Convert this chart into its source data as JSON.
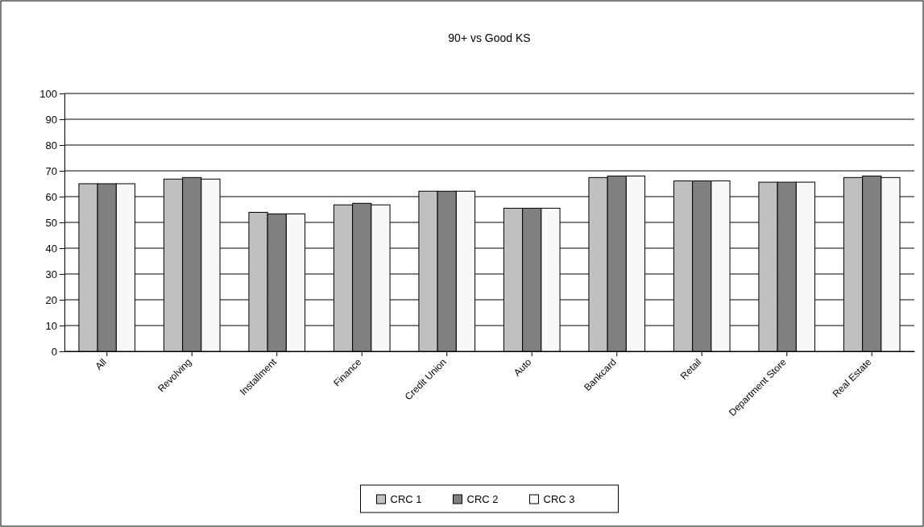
{
  "chart_data": {
    "type": "bar",
    "title": "90+ vs Good KS",
    "categories": [
      "All",
      "Revolving",
      "Installment",
      "Finance",
      "Credit Union",
      "Auto",
      "Bankcard",
      "Retail",
      "Department Store",
      "Real Estate"
    ],
    "series": [
      {
        "name": "CRC 1",
        "color": "#c0c0c0",
        "values": [
          65,
          66.8,
          53.9,
          56.8,
          62.1,
          55.5,
          67.4,
          66.1,
          65.6,
          67.4
        ]
      },
      {
        "name": "CRC 2",
        "color": "#808080",
        "values": [
          65,
          67.4,
          53.3,
          57.4,
          62.1,
          55.5,
          68.0,
          66.1,
          65.6,
          68.0
        ]
      },
      {
        "name": "CRC 3",
        "color": "#f8f8f8",
        "values": [
          65,
          66.8,
          53.3,
          56.8,
          62.1,
          55.5,
          68.0,
          66.1,
          65.6,
          67.4
        ]
      }
    ],
    "ylim": [
      0,
      100
    ],
    "yticks": [
      0,
      10,
      20,
      30,
      40,
      50,
      60,
      70,
      80,
      90,
      100
    ],
    "grid": "y",
    "legend": "bottom"
  }
}
